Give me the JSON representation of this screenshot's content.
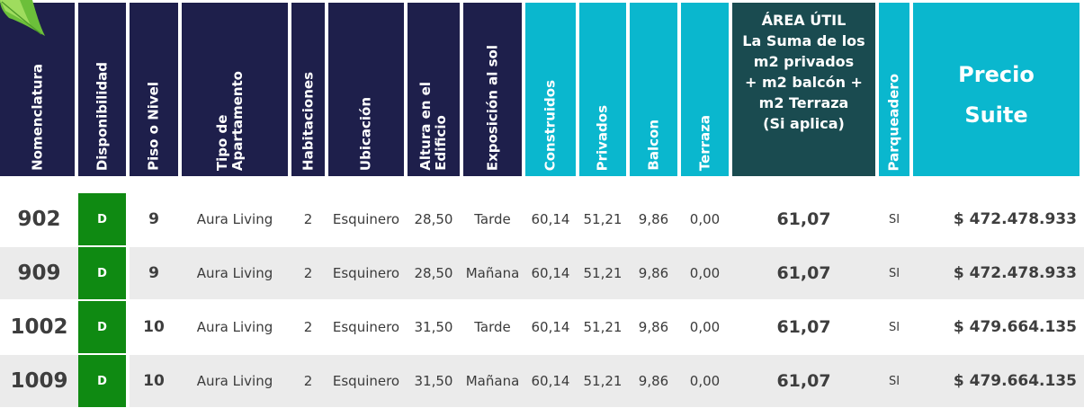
{
  "headers": {
    "nomenclatura": "Nomenclatura",
    "disponibilidad": "Disponibilidad",
    "piso": "Piso o Nivel",
    "tipo_line1": "Tipo de",
    "tipo_line2": "Apartamento",
    "habitaciones": "Habitaciones",
    "ubicacion": "Ubicación",
    "altura_line1": "Altura en el",
    "altura_line2": "Edificio",
    "exposicion": "Exposición al sol",
    "construidos": "Construidos",
    "privados": "Privados",
    "balcon": "Balcon",
    "terraza": "Terraza",
    "area_lines": [
      "ÁREA ÚTIL",
      "La Suma de los",
      "m2 privados",
      "+ m2 balcón +",
      "m2 Terraza",
      "(Si aplica)"
    ],
    "parqueadero": "Parqueadero",
    "precio_line1": "Precio",
    "precio_line2": "Suite"
  },
  "rows": [
    {
      "nomenclatura": "902",
      "disponibilidad": "D",
      "piso": "9",
      "tipo": "Aura Living",
      "habitaciones": "2",
      "ubicacion": "Esquinero",
      "altura": "28,50",
      "exposicion": "Tarde",
      "construidos": "60,14",
      "privados": "51,21",
      "balcon": "9,86",
      "terraza": "0,00",
      "area": "61,07",
      "parqueadero": "SI",
      "precio": "$ 472.478.933"
    },
    {
      "nomenclatura": "909",
      "disponibilidad": "D",
      "piso": "9",
      "tipo": "Aura Living",
      "habitaciones": "2",
      "ubicacion": "Esquinero",
      "altura": "28,50",
      "exposicion": "Mañana",
      "construidos": "60,14",
      "privados": "51,21",
      "balcon": "9,86",
      "terraza": "0,00",
      "area": "61,07",
      "parqueadero": "SI",
      "precio": "$ 472.478.933"
    },
    {
      "nomenclatura": "1002",
      "disponibilidad": "D",
      "piso": "10",
      "tipo": "Aura Living",
      "habitaciones": "2",
      "ubicacion": "Esquinero",
      "altura": "31,50",
      "exposicion": "Tarde",
      "construidos": "60,14",
      "privados": "51,21",
      "balcon": "9,86",
      "terraza": "0,00",
      "area": "61,07",
      "parqueadero": "SI",
      "precio": "$ 479.664.135"
    },
    {
      "nomenclatura": "1009",
      "disponibilidad": "D",
      "piso": "10",
      "tipo": "Aura Living",
      "habitaciones": "2",
      "ubicacion": "Esquinero",
      "altura": "31,50",
      "exposicion": "Mañana",
      "construidos": "60,14",
      "privados": "51,21",
      "balcon": "9,86",
      "terraza": "0,00",
      "area": "61,07",
      "parqueadero": "SI",
      "precio": "$ 479.664.135"
    }
  ],
  "colors": {
    "header_navy": "#1e1f4b",
    "header_teal": "#0ab7ce",
    "header_dark_teal": "#1a4b50",
    "available_green": "#0f8a12",
    "row_band": "#ebebeb"
  },
  "icons": {
    "corner_decoration": "leaf-icon"
  }
}
